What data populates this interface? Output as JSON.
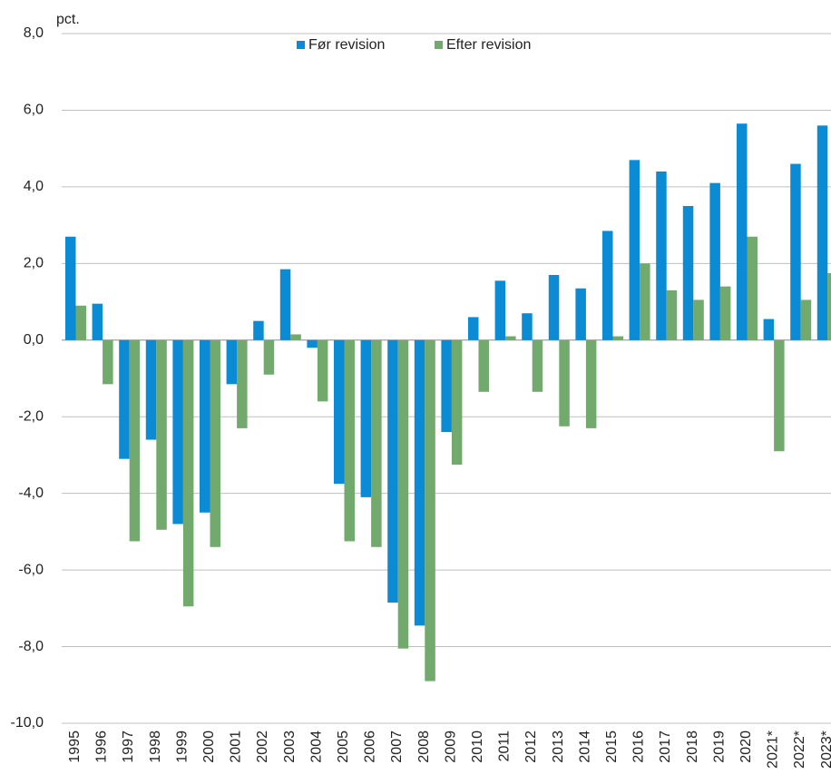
{
  "chart_data": {
    "type": "bar",
    "y_label": "pct.",
    "categories": [
      "1995",
      "1996",
      "1997",
      "1998",
      "1999",
      "2000",
      "2001",
      "2002",
      "2003",
      "2004",
      "2005",
      "2006",
      "2007",
      "2008",
      "2009",
      "2010",
      "2011",
      "2012",
      "2013",
      "2014",
      "2015",
      "2016",
      "2017",
      "2018",
      "2019",
      "2020",
      "2021*",
      "2022*",
      "2023*"
    ],
    "series": [
      {
        "name": "Før revision",
        "color": "#0b8bd3",
        "values": [
          2.7,
          0.95,
          -3.1,
          -2.6,
          -4.8,
          -4.5,
          -1.15,
          0.5,
          1.85,
          -0.2,
          -3.75,
          -4.1,
          -6.85,
          -7.45,
          -2.4,
          0.6,
          1.55,
          0.7,
          1.7,
          1.35,
          2.85,
          4.7,
          4.4,
          3.5,
          4.1,
          5.65,
          0.55,
          4.6,
          5.6
        ]
      },
      {
        "name": "Efter revision",
        "color": "#72aa6e",
        "values": [
          0.9,
          -1.15,
          -5.25,
          -4.95,
          -6.95,
          -5.4,
          -2.3,
          -0.9,
          0.15,
          -1.6,
          -5.25,
          -5.4,
          -8.05,
          -8.9,
          -3.25,
          -1.35,
          0.1,
          -1.35,
          -2.25,
          -2.3,
          0.1,
          2.0,
          1.3,
          1.05,
          1.4,
          2.7,
          -2.9,
          1.05,
          1.75
        ]
      }
    ],
    "ylim": [
      -10,
      8
    ],
    "yticks": [
      {
        "value": -10,
        "label": "-10,0"
      },
      {
        "value": -8,
        "label": "-8,0"
      },
      {
        "value": -6,
        "label": "-6,0"
      },
      {
        "value": -4,
        "label": "-4,0"
      },
      {
        "value": -2,
        "label": "-2,0"
      },
      {
        "value": 0,
        "label": "0,0"
      },
      {
        "value": 2,
        "label": "2,0"
      },
      {
        "value": 4,
        "label": "4,0"
      },
      {
        "value": 6,
        "label": "6,0"
      },
      {
        "value": 8,
        "label": "8,0"
      }
    ],
    "grid": true
  }
}
